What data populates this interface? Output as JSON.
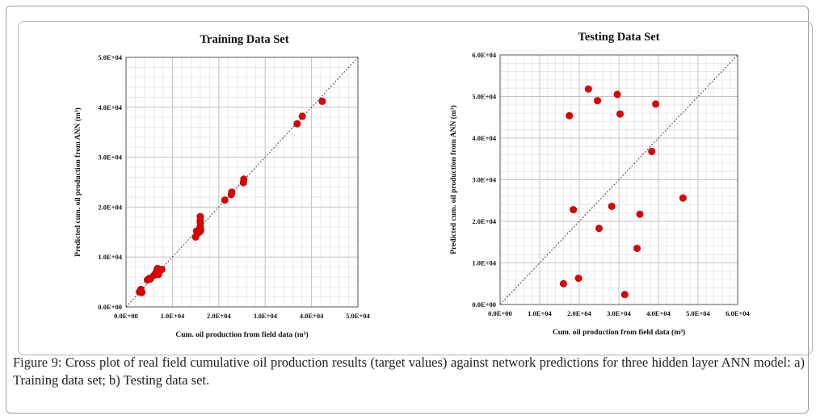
{
  "figure": {
    "caption_label": "Figure 9:",
    "caption_text": " Cross plot of real field cumulative oil production results (target values) against network predictions for three hidden layer ANN model: a) Training data set; b) Testing data set."
  },
  "chart_data": [
    {
      "type": "scatter",
      "title": "Training Data Set",
      "xlabel": "Cum. oil production from field data (m³)",
      "ylabel": "Predicted cum. oil production from ANN (m³)",
      "xlim": [
        0,
        50000
      ],
      "ylim": [
        0,
        50000
      ],
      "x_ticks": [
        0,
        10000,
        20000,
        30000,
        40000,
        50000
      ],
      "y_ticks": [
        0,
        10000,
        20000,
        30000,
        40000,
        50000
      ],
      "x_tick_labels": [
        "0.0E+00",
        "1.0E+04",
        "2.0E+04",
        "3.0E+04",
        "4.0E+04",
        "5.0E+04"
      ],
      "y_tick_labels": [
        "0.0E+00",
        "1.0E+04",
        "2.0E+04",
        "3.0E+04",
        "4.0E+04",
        "5.0E+04"
      ],
      "grid": true,
      "reference_line": "y = x (dotted)",
      "marker_color": "#e00000",
      "points": [
        [
          2900,
          3000
        ],
        [
          3200,
          3500
        ],
        [
          3400,
          2900
        ],
        [
          3100,
          3200
        ],
        [
          4600,
          5400
        ],
        [
          5000,
          5700
        ],
        [
          5200,
          5600
        ],
        [
          6000,
          6300
        ],
        [
          6400,
          6800
        ],
        [
          6700,
          7500
        ],
        [
          6800,
          7700
        ],
        [
          7200,
          7100
        ],
        [
          7700,
          7500
        ],
        [
          7000,
          6500
        ],
        [
          15000,
          14000
        ],
        [
          15200,
          15200
        ],
        [
          15500,
          14800
        ],
        [
          15800,
          15000
        ],
        [
          16000,
          15200
        ],
        [
          16000,
          15700
        ],
        [
          16000,
          16200
        ],
        [
          16000,
          16900
        ],
        [
          16000,
          17300
        ],
        [
          16000,
          18100
        ],
        [
          16100,
          15400
        ],
        [
          21300,
          21400
        ],
        [
          22700,
          22500
        ],
        [
          22800,
          23000
        ],
        [
          25300,
          24900
        ],
        [
          25400,
          25600
        ],
        [
          36900,
          36700
        ],
        [
          38000,
          38200
        ],
        [
          42300,
          41200
        ]
      ]
    },
    {
      "type": "scatter",
      "title": "Testing Data Set",
      "xlabel": "Cum. oil production from field data (m³)",
      "ylabel": "Predicted cum. oil production from ANN (m³)",
      "xlim": [
        0,
        60000
      ],
      "ylim": [
        0,
        60000
      ],
      "x_ticks": [
        0,
        10000,
        20000,
        30000,
        40000,
        50000,
        60000
      ],
      "y_ticks": [
        0,
        10000,
        20000,
        30000,
        40000,
        50000,
        60000
      ],
      "x_tick_labels": [
        "0.0E+00",
        "1.0E+04",
        "2.0E+04",
        "3.0E+04",
        "4.0E+04",
        "5.0E+04",
        "6.0E+04"
      ],
      "y_tick_labels": [
        "0.0E+00",
        "1.0E+04",
        "2.0E+04",
        "3.0E+04",
        "4.0E+04",
        "5.0E+04",
        "6.0E+04"
      ],
      "grid": true,
      "reference_line": "y = x (dotted)",
      "marker_color": "#e00000",
      "points": [
        [
          16000,
          5000
        ],
        [
          17500,
          45400
        ],
        [
          18500,
          22800
        ],
        [
          19800,
          6300
        ],
        [
          22300,
          51800
        ],
        [
          24600,
          49000
        ],
        [
          25000,
          18300
        ],
        [
          28200,
          23600
        ],
        [
          29600,
          50500
        ],
        [
          30300,
          45800
        ],
        [
          31500,
          2400
        ],
        [
          34600,
          13500
        ],
        [
          35300,
          21700
        ],
        [
          38300,
          36800
        ],
        [
          39300,
          48200
        ],
        [
          46200,
          25600
        ]
      ]
    }
  ]
}
